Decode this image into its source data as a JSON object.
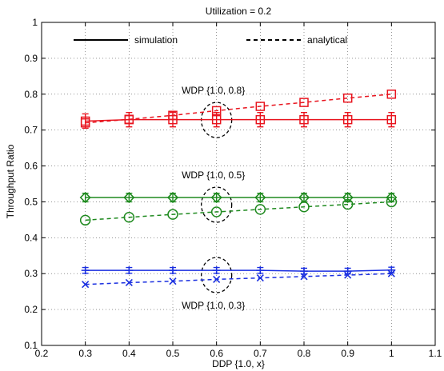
{
  "chart_data": {
    "type": "line",
    "title": "Utilization = 0.2",
    "xlabel": "DDP {1.0, x}",
    "ylabel": "Throughput Ratio",
    "xlim": [
      0.2,
      1.1
    ],
    "ylim": [
      0.1,
      1.0
    ],
    "xticks": [
      "0.2",
      "0.3",
      "0.4",
      "0.5",
      "0.6",
      "0.7",
      "0.8",
      "0.9",
      "1",
      "1.1"
    ],
    "yticks": [
      "0.1",
      "0.2",
      "0.3",
      "0.4",
      "0.5",
      "0.6",
      "0.7",
      "0.8",
      "0.9",
      "1"
    ],
    "grid": true,
    "legend": [
      {
        "label": "simulation",
        "style": "solid"
      },
      {
        "label": "analytical",
        "style": "dashed"
      }
    ],
    "x": [
      0.3,
      0.4,
      0.5,
      0.6,
      0.7,
      0.8,
      0.9,
      1.0
    ],
    "series": [
      {
        "group": "WDP {1.0, 0.8}",
        "kind": "simulation",
        "color": "#e8141e",
        "marker": "square",
        "values": [
          0.725,
          0.729,
          0.729,
          0.729,
          0.729,
          0.729,
          0.729,
          0.729
        ],
        "error": 0.02
      },
      {
        "group": "WDP {1.0, 0.8}",
        "kind": "analytical",
        "color": "#e8141e",
        "marker": "square",
        "values": [
          0.72,
          0.73,
          0.741,
          0.754,
          0.766,
          0.777,
          0.789,
          0.8
        ]
      },
      {
        "group": "WDP {1.0, 0.5}",
        "kind": "simulation",
        "color": "#1f8a1f",
        "marker": "diamond",
        "values": [
          0.512,
          0.512,
          0.512,
          0.512,
          0.512,
          0.512,
          0.512,
          0.512
        ],
        "error": 0.012
      },
      {
        "group": "WDP {1.0, 0.5}",
        "kind": "analytical",
        "color": "#1f8a1f",
        "marker": "circle",
        "values": [
          0.449,
          0.457,
          0.465,
          0.472,
          0.479,
          0.486,
          0.493,
          0.5
        ]
      },
      {
        "group": "WDP {1.0, 0.3}",
        "kind": "simulation",
        "color": "#1a2fe0",
        "marker": "plus",
        "values": [
          0.309,
          0.309,
          0.309,
          0.309,
          0.309,
          0.307,
          0.307,
          0.31
        ],
        "error": 0.008
      },
      {
        "group": "WDP {1.0, 0.3}",
        "kind": "analytical",
        "color": "#1a2fe0",
        "marker": "x",
        "values": [
          0.27,
          0.275,
          0.279,
          0.284,
          0.288,
          0.292,
          0.296,
          0.3
        ]
      }
    ],
    "annotations": [
      {
        "text": "WDP {1.0, 0.8}",
        "x": 0.6,
        "y": 0.728
      },
      {
        "text": "WDP {1.0, 0.5}",
        "x": 0.6,
        "y": 0.492
      },
      {
        "text": "WDP {1.0, 0.3}",
        "x": 0.6,
        "y": 0.296
      }
    ]
  }
}
